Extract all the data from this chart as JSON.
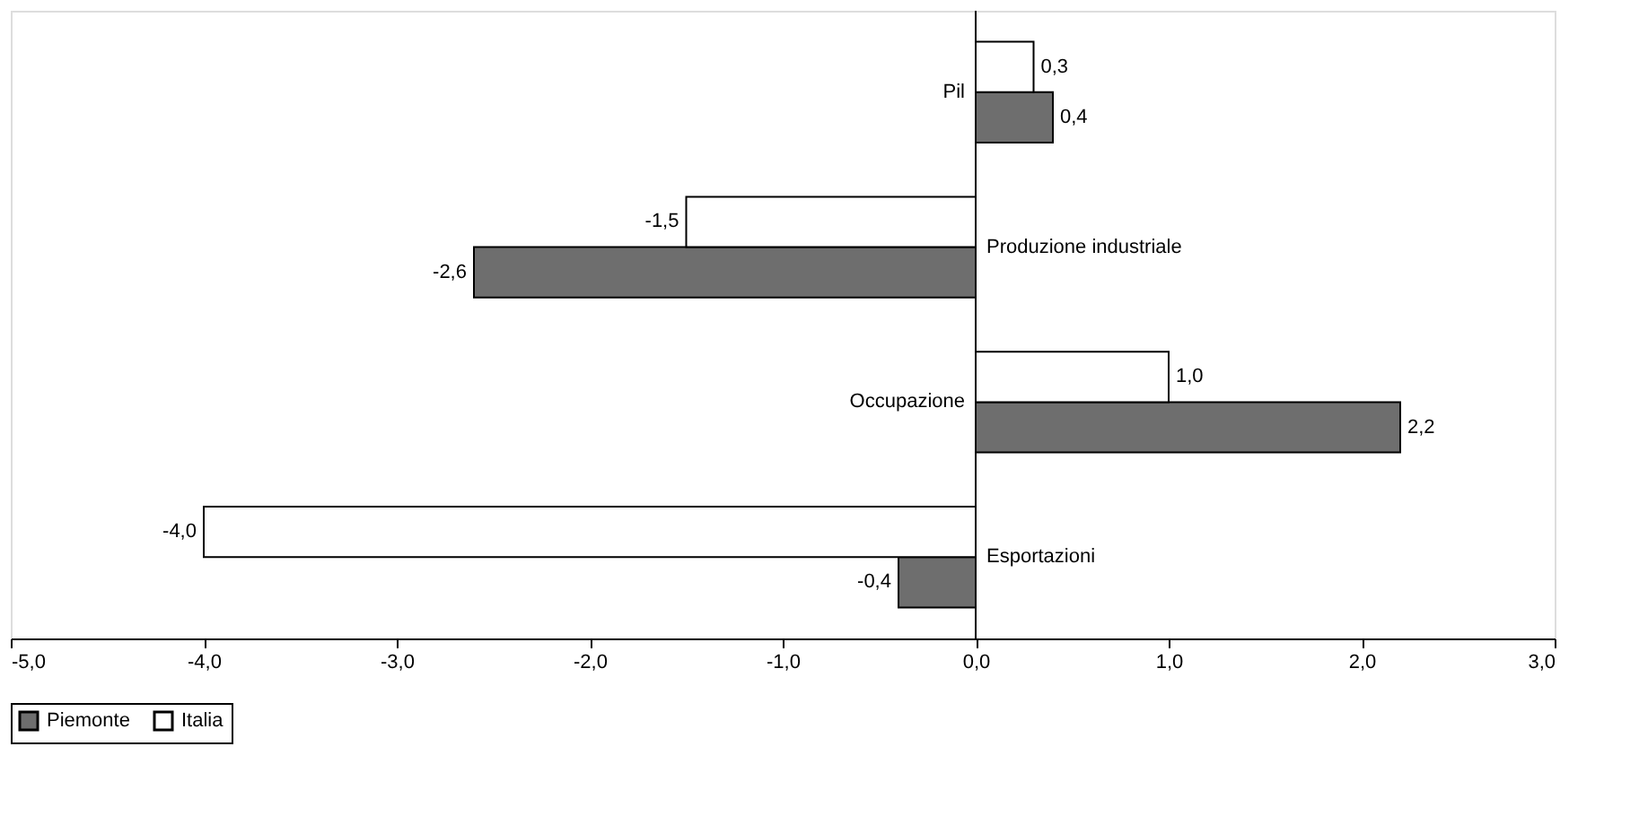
{
  "chart_data": {
    "type": "bar",
    "orientation": "horizontal",
    "categories": [
      "Pil",
      "Produzione industriale",
      "Occupazione",
      "Esportazioni"
    ],
    "series": [
      {
        "name": "Piemonte",
        "color": "#6e6e6e",
        "values": [
          0.4,
          -2.6,
          2.2,
          -0.4
        ],
        "value_labels": [
          "0,4",
          "-2,6",
          "2,2",
          "-0,4"
        ]
      },
      {
        "name": "Italia",
        "color": "#ffffff",
        "values": [
          0.3,
          -1.5,
          1.0,
          -4.0
        ],
        "value_labels": [
          "0,3",
          "-1,5",
          "1,0",
          "-4,0"
        ]
      }
    ],
    "xlim": [
      -5,
      3
    ],
    "xticks": [
      {
        "value": -5,
        "label": "-5,0"
      },
      {
        "value": -4,
        "label": "-4,0"
      },
      {
        "value": -3,
        "label": "-3,0"
      },
      {
        "value": -2,
        "label": "-2,0"
      },
      {
        "value": -1,
        "label": "-1,0"
      },
      {
        "value": 0,
        "label": "0,0"
      },
      {
        "value": 1,
        "label": "1,0"
      },
      {
        "value": 2,
        "label": "2,0"
      },
      {
        "value": 3,
        "label": "3,0"
      }
    ],
    "grid": false,
    "legend": "bottom"
  }
}
